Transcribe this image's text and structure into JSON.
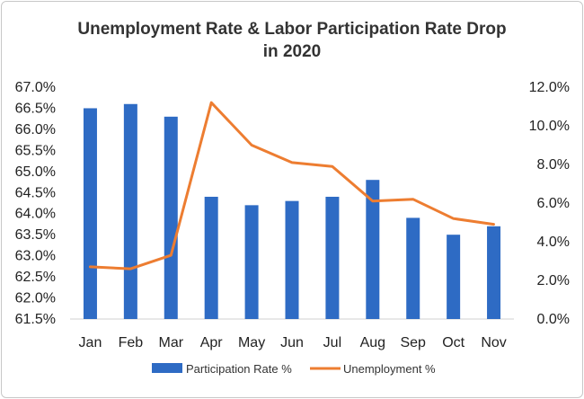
{
  "chart_data": {
    "type": "bar",
    "title_lines": [
      "Unemployment Rate & Labor Participation Rate Drop",
      "in 2020"
    ],
    "categories": [
      "Jan",
      "Feb",
      "Mar",
      "Apr",
      "May",
      "Jun",
      "Jul",
      "Aug",
      "Sep",
      "Oct",
      "Nov"
    ],
    "series": [
      {
        "name": "Participation Rate %",
        "type": "bar",
        "axis": "left",
        "color": "#2e6bc4",
        "values": [
          66.5,
          66.6,
          66.3,
          64.4,
          64.2,
          64.3,
          64.4,
          64.8,
          63.9,
          63.5,
          63.7
        ]
      },
      {
        "name": "Unemployment %",
        "type": "line",
        "axis": "right",
        "color": "#ed7d31",
        "values": [
          2.7,
          2.6,
          3.3,
          11.2,
          9.0,
          8.1,
          7.9,
          6.1,
          6.2,
          5.2,
          4.9
        ]
      }
    ],
    "left_axis": {
      "ylim": [
        61.5,
        67.0
      ],
      "ticks": [
        61.5,
        62.0,
        62.5,
        63.0,
        63.5,
        64.0,
        64.5,
        65.0,
        65.5,
        66.0,
        66.5,
        67.0
      ],
      "tick_labels": [
        "61.5%",
        "62.0%",
        "62.5%",
        "63.0%",
        "63.5%",
        "64.0%",
        "64.5%",
        "65.0%",
        "65.5%",
        "66.0%",
        "66.5%",
        "67.0%"
      ]
    },
    "right_axis": {
      "ylim": [
        0,
        12
      ],
      "ticks": [
        0,
        2,
        4,
        6,
        8,
        10,
        12
      ],
      "tick_labels": [
        "0.0%",
        "2.0%",
        "4.0%",
        "6.0%",
        "8.0%",
        "10.0%",
        "12.0%"
      ]
    },
    "grid": false,
    "legend_position": "bottom"
  }
}
